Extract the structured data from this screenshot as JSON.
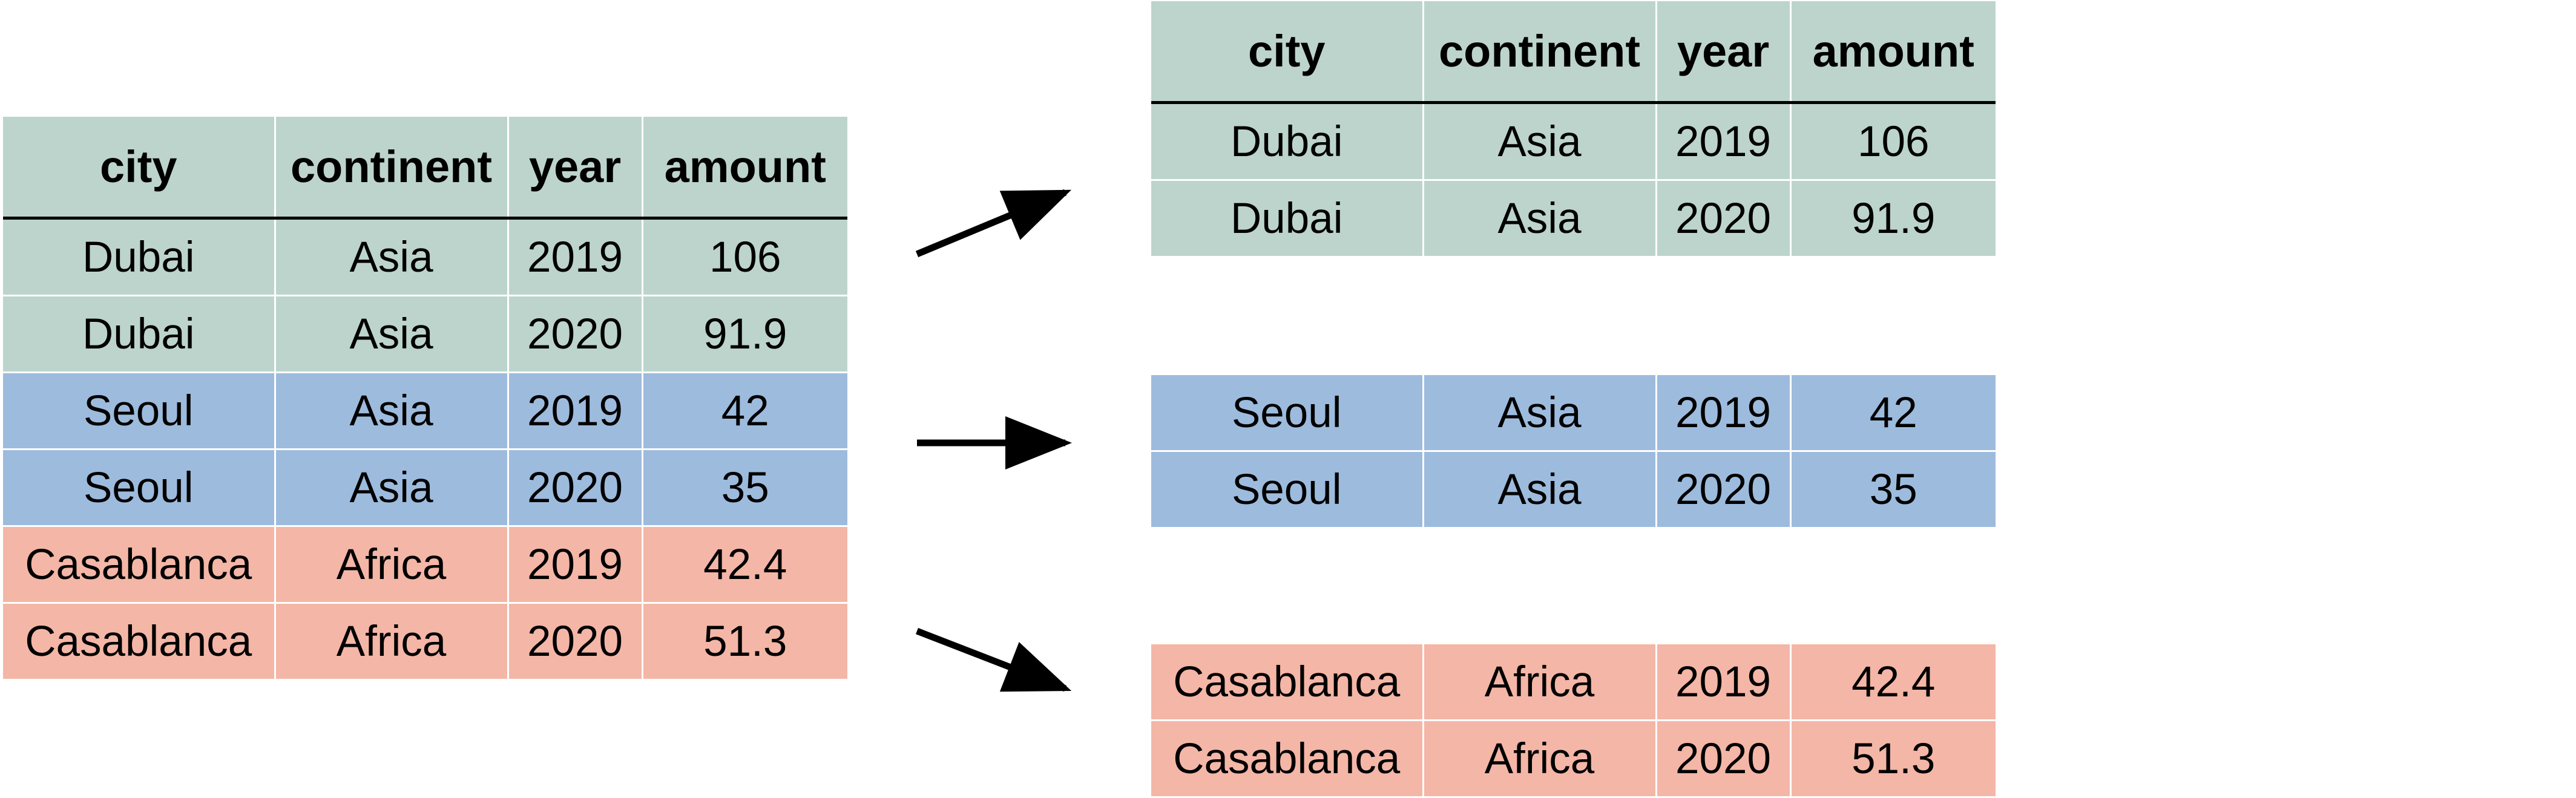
{
  "colors": {
    "group_green": "#bcd4cc",
    "group_blue": "#9dbbdd",
    "group_red": "#f4b6a6",
    "arrow": "#000000"
  },
  "columns": [
    "city",
    "continent",
    "year",
    "amount"
  ],
  "source_rows": [
    {
      "city": "Dubai",
      "continent": "Asia",
      "year": "2019",
      "amount": "106",
      "group": "green"
    },
    {
      "city": "Dubai",
      "continent": "Asia",
      "year": "2020",
      "amount": "91.9",
      "group": "green"
    },
    {
      "city": "Seoul",
      "continent": "Asia",
      "year": "2019",
      "amount": "42",
      "group": "blue"
    },
    {
      "city": "Seoul",
      "continent": "Asia",
      "year": "2020",
      "amount": "35",
      "group": "blue"
    },
    {
      "city": "Casablanca",
      "continent": "Africa",
      "year": "2019",
      "amount": "42.4",
      "group": "red"
    },
    {
      "city": "Casablanca",
      "continent": "Africa",
      "year": "2020",
      "amount": "51.3",
      "group": "red"
    }
  ],
  "groups": [
    {
      "color": "green",
      "show_header": true,
      "rows": [
        {
          "city": "Dubai",
          "continent": "Asia",
          "year": "2019",
          "amount": "106"
        },
        {
          "city": "Dubai",
          "continent": "Asia",
          "year": "2020",
          "amount": "91.9"
        }
      ]
    },
    {
      "color": "blue",
      "show_header": false,
      "rows": [
        {
          "city": "Seoul",
          "continent": "Asia",
          "year": "2019",
          "amount": "42"
        },
        {
          "city": "Seoul",
          "continent": "Asia",
          "year": "2020",
          "amount": "35"
        }
      ]
    },
    {
      "color": "red",
      "show_header": false,
      "rows": [
        {
          "city": "Casablanca",
          "continent": "Africa",
          "year": "2019",
          "amount": "42.4"
        },
        {
          "city": "Casablanca",
          "continent": "Africa",
          "year": "2020",
          "amount": "51.3"
        }
      ]
    }
  ],
  "arrows": [
    "arrow-to-group-1",
    "arrow-to-group-2",
    "arrow-to-group-3"
  ]
}
